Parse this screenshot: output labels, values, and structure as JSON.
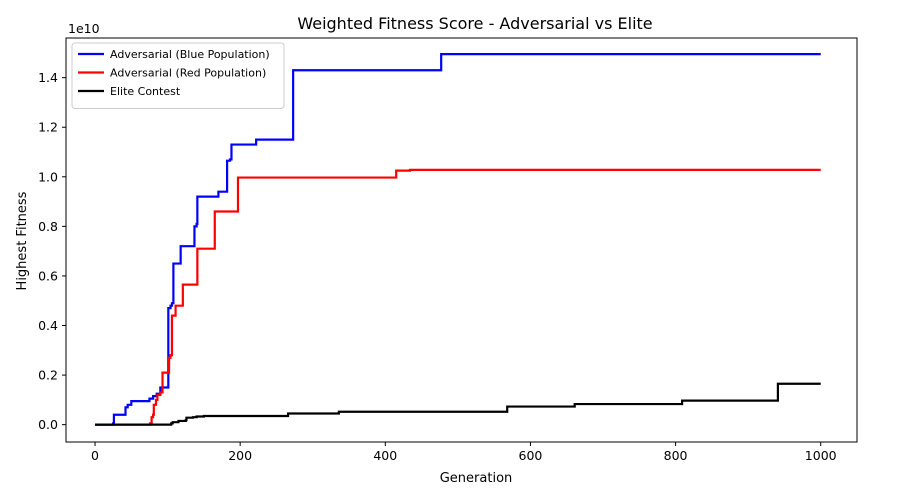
{
  "chart_data": {
    "type": "line",
    "title": "Weighted Fitness Score - Adversarial vs Elite",
    "xlabel": "Generation",
    "ylabel": "Highest Fitness",
    "y_multiplier_label": "1e10",
    "xlim": [
      -40,
      1050
    ],
    "ylim": [
      -0.07,
      1.56
    ],
    "x_ticks": [
      0,
      200,
      400,
      600,
      800,
      1000
    ],
    "x_tick_labels": [
      "0",
      "200",
      "400",
      "600",
      "800",
      "1000"
    ],
    "y_ticks": [
      0,
      0.2,
      0.4,
      0.6,
      0.8,
      1.0,
      1.2,
      1.4
    ],
    "y_tick_labels": [
      "0.0",
      "0.2",
      "0.4",
      "0.6",
      "0.8",
      "1.0",
      "1.2",
      "1.4"
    ],
    "grid": false,
    "legend_position": "top-left",
    "series": [
      {
        "name": "Adversarial (Blue Population)",
        "color": "#0000ff",
        "step": true,
        "points": [
          [
            0,
            0
          ],
          [
            25,
            0.005
          ],
          [
            26,
            0.04
          ],
          [
            40,
            0.04
          ],
          [
            42,
            0.07
          ],
          [
            45,
            0.08
          ],
          [
            50,
            0.095
          ],
          [
            70,
            0.095
          ],
          [
            75,
            0.105
          ],
          [
            80,
            0.115
          ],
          [
            85,
            0.125
          ],
          [
            90,
            0.15
          ],
          [
            100,
            0.15
          ],
          [
            101,
            0.47
          ],
          [
            104,
            0.48
          ],
          [
            106,
            0.49
          ],
          [
            108,
            0.65
          ],
          [
            115,
            0.65
          ],
          [
            118,
            0.72
          ],
          [
            135,
            0.72
          ],
          [
            137,
            0.8
          ],
          [
            140,
            0.81
          ],
          [
            141,
            0.92
          ],
          [
            168,
            0.92
          ],
          [
            170,
            0.94
          ],
          [
            180,
            0.94
          ],
          [
            182,
            1.065
          ],
          [
            186,
            1.07
          ],
          [
            188,
            1.13
          ],
          [
            220,
            1.13
          ],
          [
            222,
            1.15
          ],
          [
            272,
            1.15
          ],
          [
            273,
            1.43
          ],
          [
            475,
            1.43
          ],
          [
            477,
            1.495
          ],
          [
            1000,
            1.495
          ]
        ]
      },
      {
        "name": "Adversarial (Red Population)",
        "color": "#ff0000",
        "step": true,
        "points": [
          [
            0,
            0
          ],
          [
            76,
            0.005
          ],
          [
            78,
            0.03
          ],
          [
            80,
            0.04
          ],
          [
            81,
            0.08
          ],
          [
            84,
            0.1
          ],
          [
            86,
            0.12
          ],
          [
            90,
            0.13
          ],
          [
            93,
            0.21
          ],
          [
            100,
            0.21
          ],
          [
            102,
            0.27
          ],
          [
            104,
            0.28
          ],
          [
            106,
            0.44
          ],
          [
            110,
            0.44
          ],
          [
            111,
            0.48
          ],
          [
            120,
            0.48
          ],
          [
            121,
            0.565
          ],
          [
            140,
            0.565
          ],
          [
            141,
            0.71
          ],
          [
            163,
            0.71
          ],
          [
            165,
            0.86
          ],
          [
            196,
            0.86
          ],
          [
            197,
            0.997
          ],
          [
            413,
            0.997
          ],
          [
            415,
            1.025
          ],
          [
            432,
            1.025
          ],
          [
            434,
            1.028
          ],
          [
            1000,
            1.028
          ]
        ]
      },
      {
        "name": "Elite Contest",
        "color": "#000000",
        "step": true,
        "points": [
          [
            0,
            0
          ],
          [
            105,
            0.005
          ],
          [
            107,
            0.01
          ],
          [
            115,
            0.015
          ],
          [
            125,
            0.018
          ],
          [
            126,
            0.028
          ],
          [
            135,
            0.03
          ],
          [
            140,
            0.033
          ],
          [
            150,
            0.035
          ],
          [
            265,
            0.035
          ],
          [
            266,
            0.045
          ],
          [
            335,
            0.045
          ],
          [
            336,
            0.052
          ],
          [
            567,
            0.052
          ],
          [
            568,
            0.073
          ],
          [
            660,
            0.073
          ],
          [
            661,
            0.083
          ],
          [
            808,
            0.083
          ],
          [
            809,
            0.097
          ],
          [
            940,
            0.097
          ],
          [
            941,
            0.165
          ],
          [
            1000,
            0.165
          ]
        ]
      }
    ]
  }
}
